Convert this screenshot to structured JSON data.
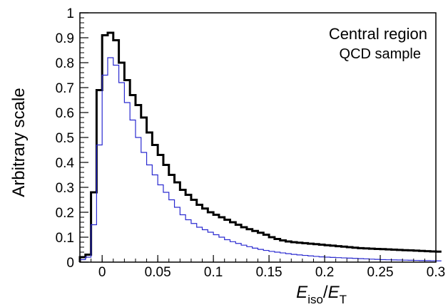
{
  "chart_data": {
    "type": "line",
    "style": "step-histogram",
    "ylabel": "Arbitrary scale",
    "xlabel_main": "E",
    "xlabel_sub1": "iso",
    "xlabel_sep": "/",
    "xlabel_main2": "E",
    "xlabel_sub2": "T",
    "annotations": [
      "Central region",
      "QCD sample"
    ],
    "xlim": [
      -0.02,
      0.3
    ],
    "ylim": [
      0,
      1
    ],
    "grid": false,
    "bin_width": 0.005,
    "x_start": -0.02,
    "x_ticks": [
      {
        "v": 0,
        "label": "0"
      },
      {
        "v": 0.05,
        "label": "0.05"
      },
      {
        "v": 0.1,
        "label": "0.1"
      },
      {
        "v": 0.15,
        "label": "0.15"
      },
      {
        "v": 0.2,
        "label": "0.2"
      },
      {
        "v": 0.25,
        "label": "0.25"
      },
      {
        "v": 0.3,
        "label": "0.3"
      }
    ],
    "y_ticks": [
      {
        "v": 0,
        "label": "0"
      },
      {
        "v": 0.1,
        "label": "0.1"
      },
      {
        "v": 0.2,
        "label": "0.2"
      },
      {
        "v": 0.3,
        "label": "0.3"
      },
      {
        "v": 0.4,
        "label": "0.4"
      },
      {
        "v": 0.5,
        "label": "0.5"
      },
      {
        "v": 0.6,
        "label": "0.6"
      },
      {
        "v": 0.7,
        "label": "0.7"
      },
      {
        "v": 0.8,
        "label": "0.8"
      },
      {
        "v": 0.9,
        "label": "0.9"
      },
      {
        "v": 1,
        "label": "1"
      }
    ],
    "series": [
      {
        "color": "#000000",
        "values": [
          0.02,
          0.03,
          0.28,
          0.69,
          0.91,
          0.92,
          0.89,
          0.8,
          0.73,
          0.67,
          0.63,
          0.58,
          0.52,
          0.47,
          0.43,
          0.39,
          0.35,
          0.32,
          0.29,
          0.27,
          0.25,
          0.23,
          0.215,
          0.2,
          0.19,
          0.18,
          0.17,
          0.16,
          0.15,
          0.14,
          0.132,
          0.125,
          0.118,
          0.11,
          0.1,
          0.093,
          0.087,
          0.083,
          0.08,
          0.078,
          0.076,
          0.074,
          0.072,
          0.07,
          0.068,
          0.066,
          0.064,
          0.062,
          0.06,
          0.058,
          0.056,
          0.055,
          0.054,
          0.053,
          0.052,
          0.051,
          0.05,
          0.049,
          0.048,
          0.047,
          0.046,
          0.045,
          0.044,
          0.043,
          0.042
        ]
      },
      {
        "color": "#2a2ad0",
        "values": [
          0.01,
          0.02,
          0.15,
          0.47,
          0.75,
          0.82,
          0.79,
          0.72,
          0.64,
          0.57,
          0.5,
          0.44,
          0.39,
          0.35,
          0.31,
          0.28,
          0.25,
          0.22,
          0.19,
          0.17,
          0.155,
          0.14,
          0.13,
          0.12,
          0.11,
          0.1,
          0.09,
          0.082,
          0.075,
          0.068,
          0.062,
          0.056,
          0.051,
          0.047,
          0.043,
          0.04,
          0.037,
          0.034,
          0.031,
          0.029,
          0.027,
          0.025,
          0.023,
          0.021,
          0.02,
          0.019,
          0.018,
          0.017,
          0.016,
          0.015,
          0.014,
          0.013,
          0.012,
          0.011,
          0.01,
          0.0095,
          0.009,
          0.0085,
          0.008,
          0.0075,
          0.007,
          0.0065,
          0.006,
          0.0055,
          0.005
        ]
      }
    ]
  }
}
